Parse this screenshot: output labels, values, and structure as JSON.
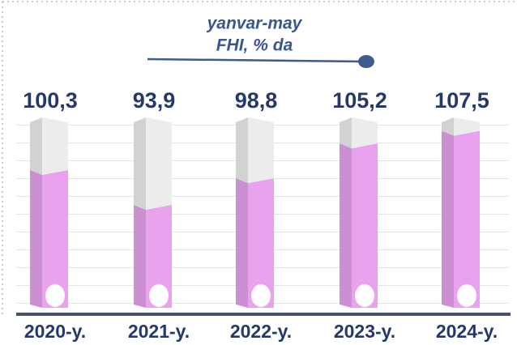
{
  "chart_data": {
    "type": "bar",
    "title_lines": [
      "yanvar-may",
      "FHI, % da"
    ],
    "categories": [
      "2020-y.",
      "2021-y.",
      "2022-y.",
      "2023-y.",
      "2024-y."
    ],
    "values": [
      100.3,
      93.9,
      98.8,
      105.2,
      107.5
    ],
    "value_labels": [
      "100,3",
      "93,9",
      "98,8",
      "105,2",
      "107,5"
    ],
    "color": "#e8a2ee",
    "ylim": [
      75,
      110
    ]
  }
}
